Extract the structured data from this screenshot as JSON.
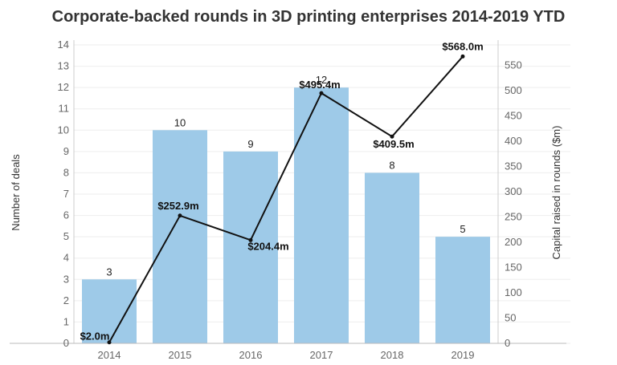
{
  "chart_data": {
    "type": "bar+line",
    "title": "Corporate-backed rounds in 3D printing enterprises 2014-2019 YTD",
    "categories": [
      "2014",
      "2015",
      "2016",
      "2017",
      "2018",
      "2019"
    ],
    "series": [
      {
        "name": "Number of deals",
        "type": "bar",
        "axis": "left",
        "values": [
          3,
          10,
          9,
          12,
          8,
          5
        ],
        "labels": [
          "3",
          "10",
          "9",
          "12",
          "8",
          "5"
        ]
      },
      {
        "name": "Capital raised in rounds ($m)",
        "type": "line",
        "axis": "right",
        "values": [
          2.0,
          252.9,
          204.4,
          495.4,
          409.5,
          568.0
        ],
        "labels": [
          "$2.0m",
          "$252.9m",
          "$204.4m",
          "$495.4m",
          "$409.5m",
          "$568.0m"
        ]
      }
    ],
    "ylabel_left": "Number of deals",
    "ylabel_right": "Capital raised in rounds ($m)",
    "ylim_left": [
      0,
      14
    ],
    "ylim_right": [
      0,
      575
    ],
    "yticks_left": [
      "0",
      "1",
      "2",
      "3",
      "4",
      "5",
      "6",
      "7",
      "8",
      "9",
      "10",
      "11",
      "12",
      "13",
      "14"
    ],
    "yticks_right": [
      "0",
      "50",
      "100",
      "150",
      "200",
      "250",
      "300",
      "350",
      "400",
      "450",
      "500",
      "550"
    ],
    "grid": true,
    "colors": {
      "bar": "#9ecae8",
      "line": "#111111",
      "grid": "#eeeeee",
      "axis": "#cccccc"
    }
  }
}
